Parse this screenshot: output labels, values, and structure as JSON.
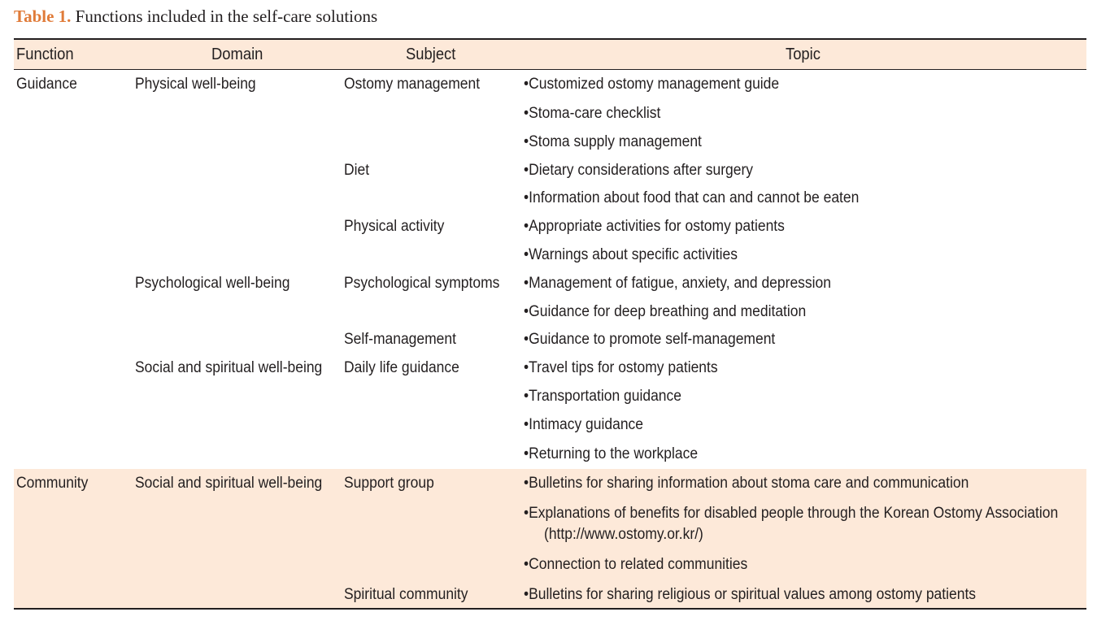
{
  "caption": {
    "label": "Table 1.",
    "text": "Functions included in the self-care solutions"
  },
  "headers": {
    "function": "Function",
    "domain": "Domain",
    "subject": "Subject",
    "topic": "Topic"
  },
  "rows": {
    "guidance": {
      "function": "Guidance",
      "domain_physical": "Physical well-being",
      "subject_ostomy": "Ostomy management",
      "topic_custom_guide": "Customized ostomy management guide",
      "topic_checklist": "Stoma-care checklist",
      "topic_supply": "Stoma supply management",
      "subject_diet": "Diet",
      "topic_dietary": "Dietary considerations after surgery",
      "topic_food_info": "Information about food that can and cannot be eaten",
      "subject_activity": "Physical activity",
      "topic_activities": "Appropriate activities for ostomy patients",
      "topic_warnings": "Warnings about specific activities",
      "domain_psych": "Psychological well-being",
      "subject_psych_symptoms": "Psychological symptoms",
      "topic_fatigue": "Management of fatigue, anxiety, and depression",
      "topic_breathing": "Guidance for deep breathing and meditation",
      "subject_self_mgmt": "Self-management",
      "topic_self_mgmt": "Guidance to promote self-management",
      "domain_social": "Social and spiritual well-being",
      "subject_daily_life": "Daily life guidance",
      "topic_travel": "Travel tips for ostomy patients",
      "topic_transport": "Transportation guidance",
      "topic_intimacy": "Intimacy guidance",
      "topic_workplace": "Returning to the workplace"
    },
    "community": {
      "function": "Community",
      "domain_social": "Social and spiritual well-being",
      "subject_support": "Support group",
      "topic_bulletins": "Bulletins for sharing information about stoma care and communication",
      "topic_benefits_line1": "Explanations of benefits for disabled people through the Korean Ostomy Association",
      "topic_benefits_line2": "(http://www.ostomy.or.kr/)",
      "topic_connection": "Connection to related communities",
      "subject_spiritual": "Spiritual community",
      "topic_religious": "Bulletins for sharing religious or spiritual values among ostomy patients"
    }
  },
  "colors": {
    "caption_label": "#e07b39",
    "band": "#fde9d9",
    "text": "#231f20"
  }
}
